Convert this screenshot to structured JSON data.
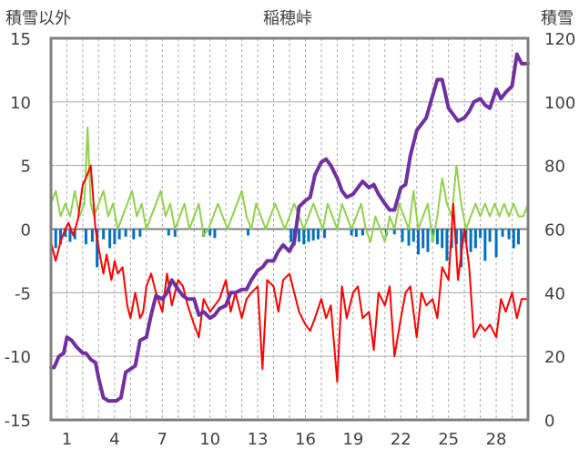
{
  "chart_data": {
    "type": "line",
    "title": "稲穂峠",
    "left_axis": {
      "label": "積雪以外",
      "ylim": [
        -15,
        15
      ],
      "ticks": [
        -15,
        -10,
        -5,
        0,
        5,
        10,
        15
      ]
    },
    "right_axis": {
      "label": "積雪",
      "ylim": [
        0,
        120
      ],
      "ticks": [
        0,
        20,
        40,
        60,
        80,
        100,
        120
      ]
    },
    "x": {
      "range": [
        0,
        30
      ],
      "ticks": [
        1,
        4,
        7,
        10,
        13,
        16,
        19,
        22,
        25,
        28
      ],
      "tick_labels": [
        "1",
        "4",
        "7",
        "10",
        "13",
        "16",
        "19",
        "22",
        "25",
        "28"
      ],
      "gridlines": "daily dashed"
    },
    "grid": true,
    "colors": {
      "snow_depth": "#7030a0",
      "temperature": "#ff0000",
      "wind": "#92d050",
      "precip": "#0070c0",
      "grid": "#aaaaaa",
      "zero_line": "#808080",
      "frame": "#808080"
    },
    "series": [
      {
        "key": "snow_depth",
        "axis": "right",
        "style": "thick-line",
        "x": [
          0,
          0.2,
          0.5,
          0.8,
          1.0,
          1.3,
          1.6,
          2.0,
          2.2,
          2.5,
          2.8,
          3.0,
          3.3,
          3.6,
          3.9,
          4.1,
          4.4,
          4.7,
          5.0,
          5.3,
          5.6,
          6.0,
          6.3,
          6.6,
          7.0,
          7.3,
          7.6,
          8.0,
          8.3,
          8.6,
          9.0,
          9.3,
          9.6,
          10.0,
          10.3,
          10.6,
          11.0,
          11.3,
          11.6,
          12.0,
          12.3,
          12.6,
          13.0,
          13.3,
          13.6,
          14.0,
          14.3,
          14.6,
          15.0,
          15.3,
          15.6,
          16.0,
          16.3,
          16.6,
          17.0,
          17.3,
          17.6,
          18.0,
          18.3,
          18.6,
          19.0,
          19.3,
          19.6,
          20.0,
          20.3,
          20.6,
          21.0,
          21.3,
          21.6,
          22.0,
          22.3,
          22.6,
          23.0,
          23.3,
          23.6,
          24.0,
          24.3,
          24.6,
          25.0,
          25.3,
          25.6,
          26.0,
          26.3,
          26.6,
          27.0,
          27.3,
          27.6,
          28.0,
          28.3,
          28.6,
          29.0,
          29.3,
          29.6,
          30.0
        ],
        "values": [
          16.5,
          16.5,
          20,
          21,
          26,
          25,
          23,
          21,
          21,
          19,
          18,
          13,
          7,
          6,
          6,
          6,
          7,
          15,
          16,
          17,
          25,
          26,
          33,
          39,
          38,
          40,
          44,
          41,
          39,
          38,
          38,
          33,
          34,
          32,
          33,
          35,
          36,
          40,
          40,
          41,
          41,
          44,
          47,
          48,
          50,
          50,
          53,
          55,
          53,
          56,
          67,
          69,
          70,
          77,
          81,
          82,
          80,
          76,
          72,
          70,
          71,
          73,
          75,
          73,
          74,
          71,
          68,
          66,
          66,
          73,
          74,
          83,
          91,
          93,
          95,
          102,
          107,
          107,
          98,
          96,
          94,
          95,
          97,
          100,
          101,
          99,
          98,
          104,
          101,
          103,
          105,
          115,
          112,
          112
        ]
      },
      {
        "key": "temperature",
        "axis": "left",
        "style": "thin-line",
        "x": [
          0,
          0.3,
          0.6,
          0.9,
          1.1,
          1.4,
          1.7,
          2.0,
          2.2,
          2.5,
          2.8,
          3.0,
          3.3,
          3.5,
          3.8,
          4.0,
          4.2,
          4.5,
          4.8,
          5.0,
          5.3,
          5.6,
          5.8,
          6.0,
          6.3,
          6.6,
          7.0,
          7.3,
          7.6,
          8.0,
          8.3,
          8.6,
          9.0,
          9.3,
          9.6,
          10.0,
          10.3,
          10.6,
          11.0,
          11.3,
          11.6,
          12.0,
          12.3,
          12.6,
          13.0,
          13.3,
          13.6,
          14.0,
          14.3,
          14.6,
          15.0,
          15.3,
          15.6,
          16.0,
          16.3,
          16.6,
          17.0,
          17.3,
          17.6,
          18.0,
          18.3,
          18.6,
          19.0,
          19.3,
          19.6,
          20.0,
          20.3,
          20.6,
          21.0,
          21.3,
          21.6,
          22.0,
          22.3,
          22.6,
          23.0,
          23.3,
          23.6,
          24.0,
          24.3,
          24.6,
          25.0,
          25.3,
          25.6,
          26.0,
          26.3,
          26.6,
          27.0,
          27.3,
          27.6,
          28.0,
          28.3,
          28.6,
          29.0,
          29.3,
          29.6,
          30.0
        ],
        "values": [
          -1,
          -2.5,
          -1,
          0,
          0.5,
          -0.5,
          0.8,
          3.5,
          4,
          5,
          0,
          -1.5,
          -3.5,
          -2,
          -4,
          -2.5,
          -3.5,
          -3,
          -6,
          -7,
          -5,
          -7,
          -6.5,
          -4.5,
          -3.5,
          -5,
          -6.5,
          -3.5,
          -6,
          -4,
          -4.5,
          -6,
          -7.5,
          -8.5,
          -5.5,
          -6.5,
          -6,
          -5.5,
          -4,
          -6.5,
          -5,
          -7,
          -5.5,
          -5,
          -4.5,
          -11,
          -4,
          -4.5,
          -6.5,
          -4,
          -3.5,
          -5,
          -6.5,
          -7.5,
          -8,
          -7,
          -5.5,
          -7,
          -6,
          -12,
          -4.5,
          -7,
          -5,
          -4.5,
          -7,
          -6.5,
          -9.5,
          -5,
          -6,
          -4.5,
          -10,
          -7,
          -5,
          -4.5,
          -8.5,
          -5,
          -6,
          -5.5,
          -7,
          -3,
          -4,
          2,
          -4,
          0,
          -3,
          -8.5,
          -7.5,
          -8,
          -7.5,
          -8.5,
          -5.5,
          -6.5,
          -5,
          -7,
          -5.5,
          -5.5
        ]
      },
      {
        "key": "wind",
        "axis": "left",
        "style": "thin-line",
        "x": [
          0,
          0.3,
          0.6,
          0.9,
          1.2,
          1.5,
          1.8,
          2.1,
          2.3,
          2.5,
          2.7,
          3.0,
          3.3,
          3.6,
          3.9,
          4.2,
          4.5,
          4.8,
          5.1,
          5.4,
          5.7,
          6.0,
          6.3,
          6.6,
          6.9,
          7.2,
          7.5,
          7.8,
          8.1,
          8.4,
          8.7,
          9.0,
          9.3,
          9.6,
          9.9,
          10.2,
          10.5,
          10.8,
          11.1,
          11.4,
          11.7,
          12.0,
          12.3,
          12.6,
          12.9,
          13.2,
          13.5,
          13.8,
          14.1,
          14.4,
          14.7,
          15.0,
          15.3,
          15.6,
          15.9,
          16.2,
          16.5,
          16.8,
          17.1,
          17.4,
          17.7,
          18.0,
          18.3,
          18.6,
          18.9,
          19.2,
          19.5,
          19.8,
          20.1,
          20.4,
          20.7,
          21.0,
          21.3,
          21.6,
          21.9,
          22.2,
          22.5,
          22.8,
          23.1,
          23.4,
          23.7,
          24.0,
          24.3,
          24.6,
          24.9,
          25.2,
          25.5,
          25.8,
          26.1,
          26.4,
          26.7,
          27.0,
          27.3,
          27.6,
          27.9,
          28.2,
          28.5,
          28.8,
          29.1,
          29.4,
          29.7,
          30.0
        ],
        "values": [
          2,
          3,
          1,
          2,
          1,
          3,
          1,
          2,
          8,
          2,
          1,
          2,
          3,
          1,
          2,
          0,
          1,
          2,
          3,
          1,
          2,
          0,
          1,
          2,
          3,
          1,
          2,
          0,
          1,
          2,
          0,
          1,
          2,
          -0.5,
          0,
          1,
          2,
          1,
          0,
          1,
          2,
          3,
          1,
          0,
          2,
          1,
          0,
          1,
          2,
          1,
          0,
          1,
          2,
          1,
          0,
          1,
          2,
          1,
          0,
          2,
          1,
          0,
          2,
          1,
          0,
          1,
          2,
          0,
          -1,
          1,
          0,
          -1,
          1,
          0,
          2,
          1,
          0,
          3,
          0,
          1,
          2,
          -1,
          1,
          4,
          2,
          1,
          5,
          2,
          0,
          1,
          2,
          1,
          2,
          1,
          2,
          1,
          2,
          1,
          2,
          1,
          1,
          2
        ]
      },
      {
        "key": "precip",
        "axis": "left",
        "style": "bars",
        "x": [
          0.3,
          0.6,
          0.9,
          1.2,
          1.5,
          2.2,
          2.6,
          2.9,
          3.3,
          3.7,
          4.0,
          4.3,
          4.7,
          5.2,
          5.6,
          7.4,
          7.8,
          9.6,
          10.0,
          10.3,
          12.4,
          15.1,
          15.3,
          15.6,
          15.9,
          16.2,
          16.5,
          16.8,
          17.2,
          18.9,
          19.2,
          19.6,
          21.1,
          21.6,
          22.1,
          22.5,
          22.8,
          23.1,
          23.4,
          23.7,
          24.0,
          24.3,
          24.6,
          24.9,
          25.2,
          25.5,
          25.8,
          26.1,
          26.4,
          26.7,
          27.0,
          27.3,
          27.6,
          28.0,
          28.4,
          28.8,
          29.1,
          29.4
        ],
        "values": [
          -1.5,
          -1.2,
          -0.6,
          -1.0,
          -0.8,
          -1.2,
          -1.0,
          -3.0,
          -0.8,
          -1.5,
          -1.2,
          -0.8,
          -0.6,
          -0.8,
          -0.6,
          -0.5,
          -0.6,
          -0.6,
          -0.5,
          -0.7,
          -0.5,
          -1.0,
          -1.3,
          -1.0,
          -1.2,
          -1.0,
          -0.9,
          -0.8,
          -0.7,
          -0.5,
          -0.6,
          -0.5,
          -0.5,
          -0.4,
          -1.0,
          -1.3,
          -1.0,
          -2.0,
          -1.5,
          -1.8,
          -1.0,
          -1.2,
          -1.5,
          -2.5,
          -1.5,
          -1.2,
          -3.0,
          -1.0,
          -1.8,
          -1.5,
          -0.7,
          -2.5,
          -1.0,
          -2.2,
          -0.6,
          -0.8,
          -1.5,
          -1.2
        ]
      }
    ]
  }
}
